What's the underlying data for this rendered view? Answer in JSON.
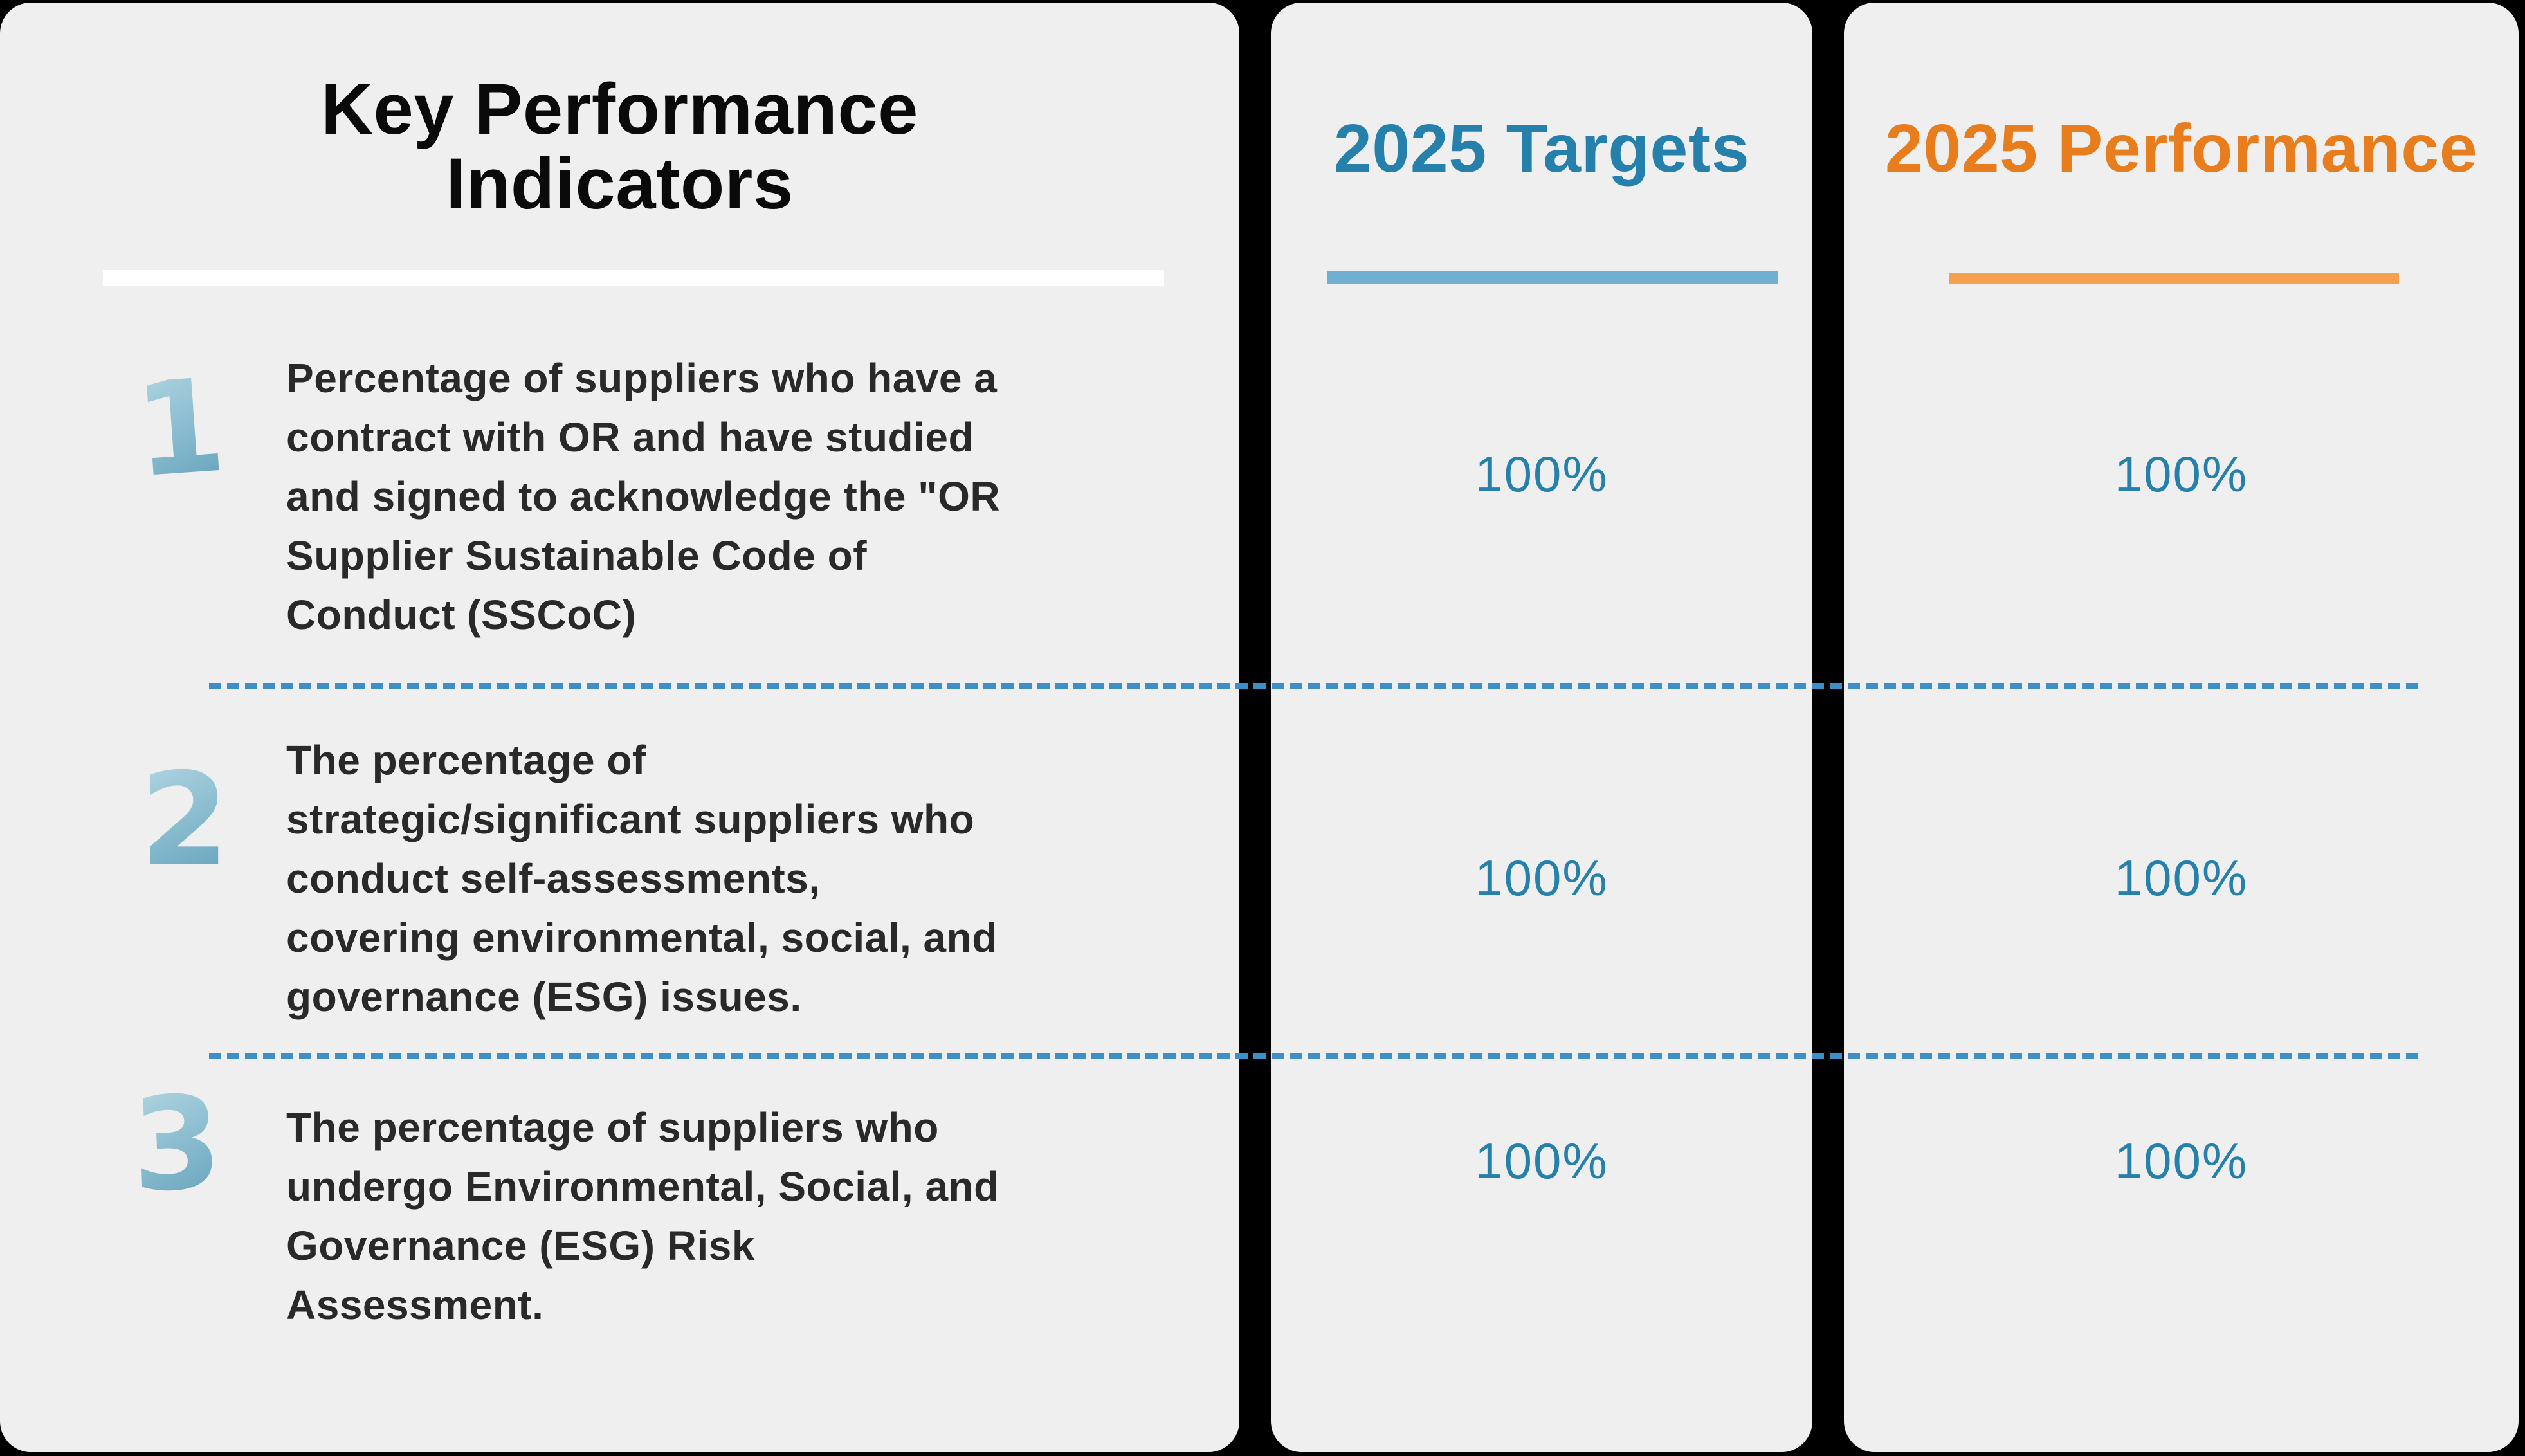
{
  "table": {
    "header": {
      "kpi_title_line1": "Key Performance",
      "kpi_title_line2": "Indicators",
      "targets_title": "2025 Targets",
      "performance_title": "2025 Performance"
    },
    "rows": [
      {
        "number": "1",
        "lines": [
          "Percentage of suppliers who have a",
          "contract with OR and have studied",
          "and signed to acknowledge the \"OR",
          "Supplier Sustainable Code of",
          "Conduct (SSCoC)"
        ],
        "target": "100%",
        "performance": "100%"
      },
      {
        "number": "2",
        "lines": [
          "The percentage of",
          "strategic/significant suppliers who",
          "conduct self-assessments,",
          "covering environmental, social, and",
          "governance (ESG) issues."
        ],
        "target": "100%",
        "performance": "100%"
      },
      {
        "number": "3",
        "lines": [
          "The percentage of suppliers who",
          "undergo Environmental, Social, and",
          "Governance (ESG) Risk",
          "Assessment."
        ],
        "target": "100%",
        "performance": "100%"
      }
    ],
    "colors": {
      "blue": "#2581ac",
      "blue_light": "#6fb0d2",
      "orange": "#e87d1e",
      "orange_light": "#f5a04e",
      "dash_blue": "#3e8fc7",
      "panel_bg": "#efefef",
      "page_bg": "#000000",
      "text_dark": "#292929"
    }
  }
}
